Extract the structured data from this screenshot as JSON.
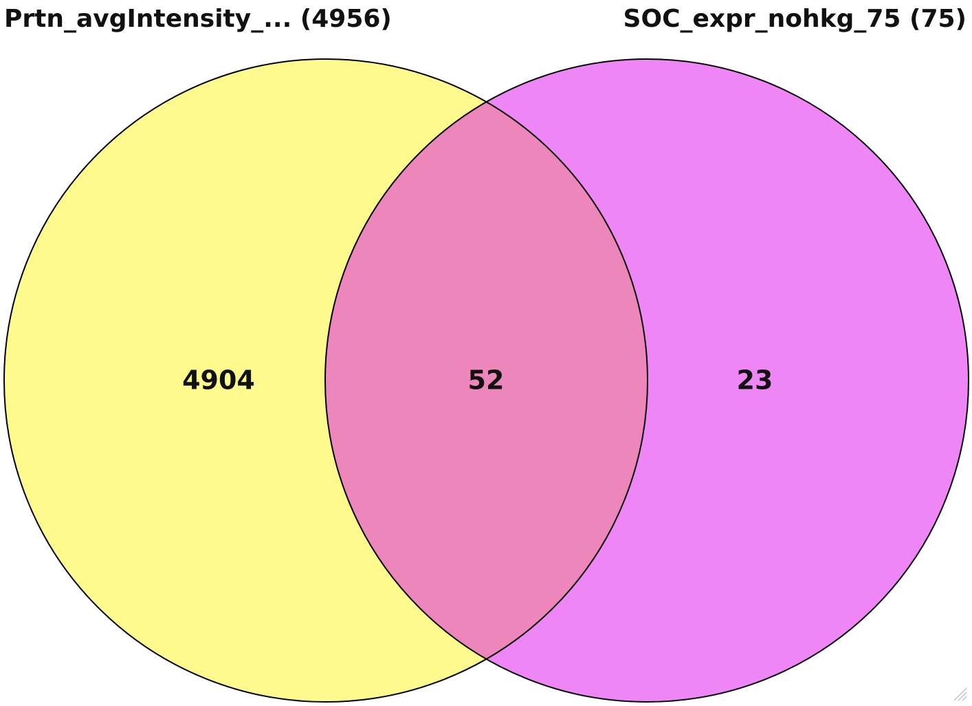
{
  "sets": [
    {
      "id": "a",
      "title": "Prtn_avgIntensity_... (4956)",
      "color": "#fffa8e"
    },
    {
      "id": "b",
      "title": "SOC_expr_nohkg_75 (75)",
      "color": "#ee86f5"
    }
  ],
  "overlap_color": "#ec86bb",
  "counts": {
    "only_a": "4904",
    "both": "52",
    "only_b": "23"
  },
  "icons": {
    "corner": "resize-grip-icon"
  }
}
